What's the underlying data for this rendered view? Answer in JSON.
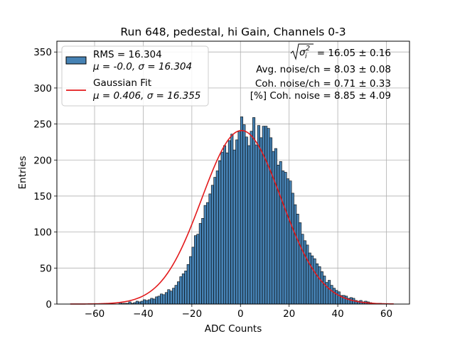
{
  "chart_data": {
    "type": "bar",
    "title": "Run 648, pedestal, hi Gain, Channels 0-3",
    "xlabel": "ADC Counts",
    "ylabel": "Entries",
    "xlim": [
      -75.5,
      69.5
    ],
    "ylim": [
      0,
      365
    ],
    "xticks": [
      -60,
      -40,
      -20,
      0,
      20,
      40,
      60
    ],
    "yticks": [
      0,
      50,
      100,
      150,
      200,
      250,
      300,
      350
    ],
    "grid": true,
    "bin_width": 1,
    "bin_start": -50,
    "histogram_values": [
      2,
      1,
      1,
      1,
      3,
      1,
      2,
      4,
      3,
      4,
      6,
      5,
      6,
      8,
      7,
      10,
      11,
      14,
      13,
      16,
      20,
      18,
      22,
      26,
      31,
      38,
      42,
      46,
      55,
      66,
      79,
      95,
      97,
      112,
      119,
      137,
      141,
      153,
      165,
      176,
      185,
      199,
      211,
      220,
      210,
      227,
      236,
      214,
      228,
      239,
      260,
      249,
      232,
      220,
      240,
      259,
      221,
      248,
      231,
      247,
      247,
      244,
      231,
      212,
      216,
      193,
      198,
      185,
      183,
      174,
      171,
      154,
      138,
      125,
      113,
      97,
      88,
      82,
      71,
      67,
      63,
      56,
      52,
      45,
      39,
      30,
      33,
      26,
      22,
      19,
      17,
      12,
      12,
      11,
      8,
      9,
      8,
      5,
      4,
      5,
      3,
      4,
      3,
      2,
      1,
      1,
      1,
      1
    ],
    "series": [
      {
        "name": "RMS = 16.304",
        "name_line2": "μ = -0.0, σ = 16.304",
        "color": "#4682b4",
        "kind": "histogram"
      },
      {
        "name": "Gaussian Fit",
        "name_line2": "μ = 0.406, σ = 16.355",
        "color": "#e31a1c",
        "kind": "line",
        "mu": 0.406,
        "sigma": 16.355,
        "amplitude": 241,
        "x_range": [
          -70,
          63
        ]
      }
    ],
    "legend_position": "upper-left",
    "annotations": [
      {
        "text": " = 16.05 ± 0.16"
      },
      {
        "text": "Avg. noise/ch = 8.03 ± 0.08"
      },
      {
        "text": "Coh. noise/ch = 0.71 ± 0.33"
      },
      {
        "text": "[%] Coh. noise = 8.85 ± 4.09"
      }
    ]
  }
}
